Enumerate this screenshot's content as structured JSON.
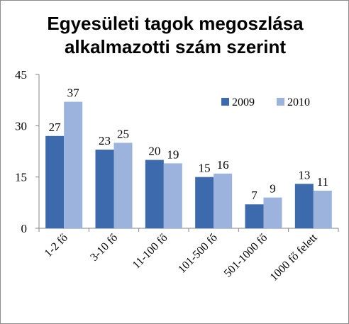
{
  "title_line1": "Egyesületi tagok megoszlása",
  "title_line2": "alkalmazotti szám szerint",
  "chart_data": {
    "type": "bar",
    "title": "Egyesületi tagok megoszlása alkalmazotti szám szerint",
    "categories": [
      "1-2 fő",
      "3-10 fő",
      "11-100 fő",
      "101-500 fő",
      "501-1000 fő",
      "1000 fő felett"
    ],
    "series": [
      {
        "name": "2009",
        "values": [
          27,
          23,
          20,
          15,
          7,
          13
        ],
        "color": "#3d6aad"
      },
      {
        "name": "2010",
        "values": [
          37,
          25,
          19,
          16,
          9,
          11
        ],
        "color": "#9cb3dd"
      }
    ],
    "ylim": [
      0,
      45
    ],
    "yticks": [
      0,
      15,
      30,
      45
    ],
    "legend": "top-right",
    "data_labels": true,
    "grid": false
  }
}
